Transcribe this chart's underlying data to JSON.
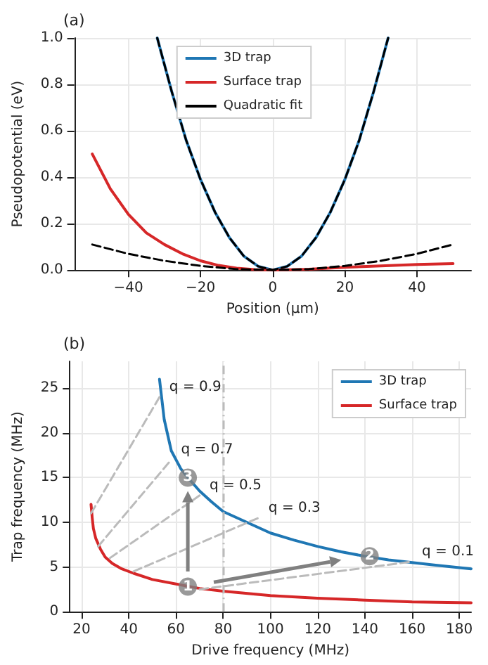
{
  "chart_data": [
    {
      "type": "line",
      "title": "(a)",
      "xlabel": "Position (μm)",
      "ylabel": "Pseudopotential (eV)",
      "xlim": [
        -55,
        55
      ],
      "xticks": [
        {
          "value": -40,
          "label": "−40"
        },
        {
          "value": -20,
          "label": "−20"
        },
        0,
        20,
        40
      ],
      "ylim": [
        0,
        1
      ],
      "yticks": [
        {
          "value": 0,
          "label": "0.0"
        },
        0.2,
        0.4,
        0.6,
        0.8,
        {
          "value": 1,
          "label": "1.0"
        }
      ],
      "grid": true,
      "legend": "top",
      "series": [
        {
          "name": "3D trap",
          "color": "#1f77b4",
          "x": [
            -32,
            -28,
            -24,
            -20,
            -16,
            -12,
            -8,
            -4,
            0,
            4,
            8,
            12,
            16,
            20,
            24,
            28,
            32
          ],
          "values": [
            1.0,
            0.77,
            0.56,
            0.39,
            0.25,
            0.14,
            0.06,
            0.016,
            0,
            0.016,
            0.06,
            0.14,
            0.25,
            0.39,
            0.56,
            0.77,
            1.0
          ]
        },
        {
          "name": "Surface trap",
          "color": "#d62728",
          "x": [
            -50,
            -45,
            -40,
            -35,
            -30,
            -25,
            -20,
            -15,
            -10,
            -5,
            0,
            10,
            20,
            30,
            40,
            50
          ],
          "values": [
            0.5,
            0.35,
            0.24,
            0.16,
            0.11,
            0.07,
            0.04,
            0.02,
            0.008,
            0.002,
            0,
            0.004,
            0.012,
            0.018,
            0.024,
            0.028
          ]
        },
        {
          "name": "Quadratic fit",
          "color": "#000000",
          "line_style": "dashed",
          "x": [
            -32,
            -28,
            -24,
            -20,
            -16,
            -12,
            -8,
            -4,
            0,
            4,
            8,
            12,
            16,
            20,
            24,
            28,
            32
          ],
          "values": [
            1.0,
            0.77,
            0.56,
            0.39,
            0.25,
            0.14,
            0.06,
            0.016,
            0,
            0.016,
            0.06,
            0.14,
            0.25,
            0.39,
            0.56,
            0.77,
            1.0
          ]
        },
        {
          "color": "#000000",
          "line_style": "dashed",
          "x": [
            -50,
            -40,
            -30,
            -20,
            -10,
            0,
            10,
            20,
            30,
            40,
            50
          ],
          "values": [
            0.11,
            0.07,
            0.04,
            0.018,
            0.004,
            0,
            0.004,
            0.018,
            0.04,
            0.07,
            0.11
          ]
        }
      ]
    },
    {
      "type": "line",
      "title": "(b)",
      "xlabel": "Drive frequency (MHz)",
      "ylabel": "Trap frequency (MHz)",
      "xlim": [
        15,
        185
      ],
      "xticks": [
        20,
        40,
        60,
        80,
        100,
        120,
        140,
        160,
        180
      ],
      "ylim": [
        0,
        28
      ],
      "yticks": [
        0,
        5,
        10,
        15,
        20,
        25
      ],
      "grid": true,
      "legend": "top right",
      "ref_lines": [
        {
          "axis": "x",
          "value": 80,
          "color": "#bbbbbb",
          "line_style": "dashed"
        }
      ],
      "annotations": [
        {
          "text": "q = 0.9",
          "x": 53,
          "y": 24
        },
        {
          "text": "q = 0.7",
          "x": 58,
          "y": 17
        },
        {
          "text": "q = 0.5",
          "x": 70,
          "y": 13
        },
        {
          "text": "q = 0.3",
          "x": 95,
          "y": 10.5
        },
        {
          "text": "q = 0.1",
          "x": 160,
          "y": 5.6
        },
        {
          "text": "1",
          "x": 65,
          "y": 2.8
        },
        {
          "text": "2",
          "x": 142,
          "y": 6.2
        },
        {
          "text": "3",
          "x": 65,
          "y": 15
        }
      ],
      "series": [
        {
          "name": "3D trap",
          "color": "#1f77b4",
          "x": [
            53,
            55,
            58,
            62,
            65,
            70,
            75,
            80,
            90,
            100,
            110,
            120,
            130,
            140,
            150,
            160,
            170,
            185
          ],
          "values": [
            26,
            21.5,
            18,
            16,
            15,
            13.5,
            12.3,
            11.2,
            10,
            8.8,
            8,
            7.3,
            6.7,
            6.2,
            5.8,
            5.5,
            5.2,
            4.8
          ]
        },
        {
          "name": "Surface trap",
          "color": "#d62728",
          "x": [
            24,
            24.5,
            25,
            26,
            28,
            30,
            33,
            37,
            42,
            50,
            60,
            70,
            80,
            100,
            120,
            140,
            160,
            185
          ],
          "values": [
            12,
            10.5,
            9.3,
            8.2,
            7,
            6.1,
            5.4,
            4.8,
            4.3,
            3.6,
            3.1,
            2.6,
            2.3,
            1.8,
            1.5,
            1.3,
            1.1,
            1
          ]
        },
        {
          "type": "line",
          "color": "#bbbbbb",
          "line_style": "dashed",
          "x": [
            24,
            53
          ],
          "values": [
            11,
            24
          ]
        },
        {
          "type": "line",
          "color": "#bbbbbb",
          "line_style": "dashed",
          "x": [
            27,
            58
          ],
          "values": [
            7.3,
            17
          ]
        },
        {
          "type": "line",
          "color": "#bbbbbb",
          "line_style": "dashed",
          "x": [
            32,
            70
          ],
          "values": [
            6,
            13
          ]
        },
        {
          "type": "line",
          "color": "#bbbbbb",
          "line_style": "dashed",
          "x": [
            42,
            95
          ],
          "values": [
            4.5,
            10.5
          ]
        },
        {
          "type": "line",
          "color": "#bbbbbb",
          "line_style": "dashed",
          "x": [
            70,
            160
          ],
          "values": [
            2.5,
            5.6
          ]
        },
        {
          "type": "scatter",
          "color": "#808080",
          "marker": "circle",
          "x": [
            65,
            142,
            65
          ],
          "values": [
            2.8,
            6.2,
            15
          ]
        }
      ]
    }
  ]
}
